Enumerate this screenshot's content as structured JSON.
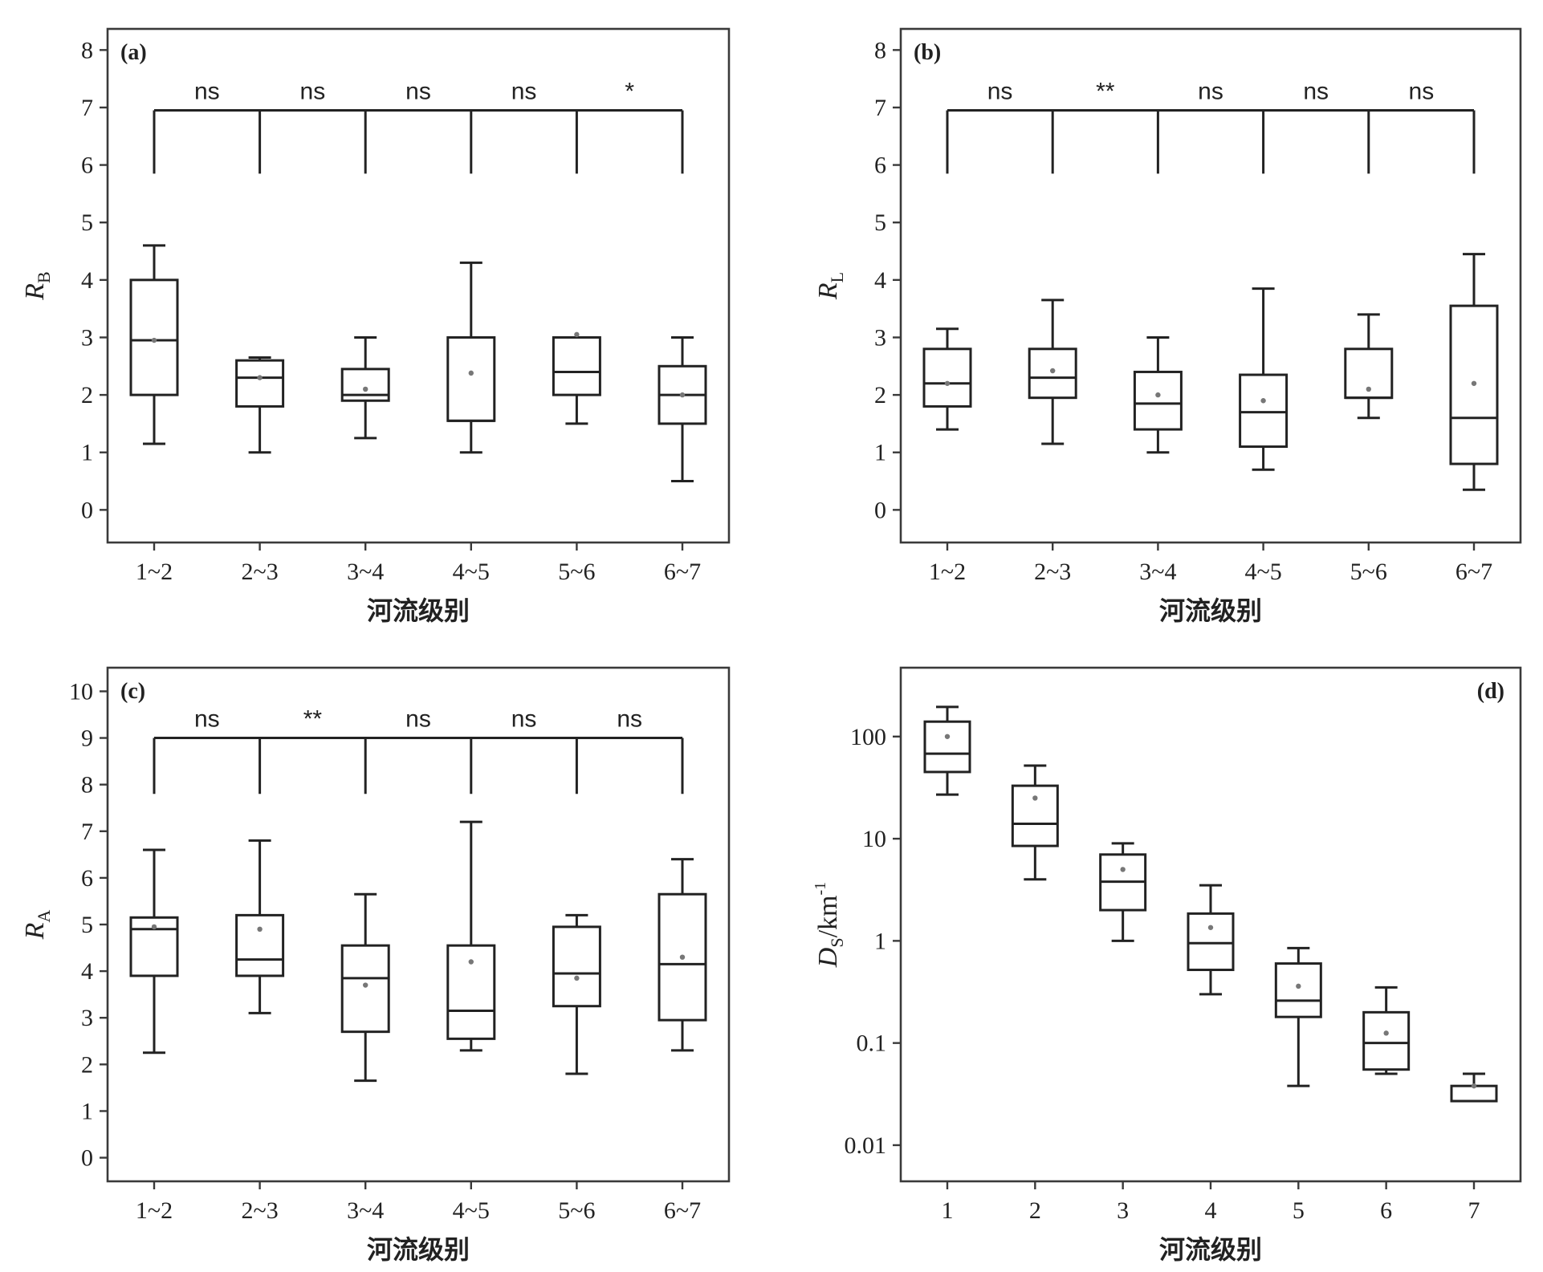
{
  "chart_data": [
    {
      "panel": "(a)",
      "type": "box",
      "xlabel": "河流级别",
      "ylabel_main": "R",
      "ylabel_sub": "B",
      "ylim": [
        -0.4,
        8.2
      ],
      "yticks": [
        0,
        1,
        2,
        3,
        4,
        5,
        6,
        7,
        8
      ],
      "categories": [
        "1~2",
        "2~3",
        "3~4",
        "4~5",
        "5~6",
        "6~7"
      ],
      "boxes": [
        {
          "min": 1.15,
          "q1": 2.0,
          "median": 2.95,
          "q3": 4.0,
          "max": 4.6,
          "mean": 2.95
        },
        {
          "min": 1.0,
          "q1": 1.8,
          "median": 2.3,
          "q3": 2.6,
          "max": 2.65,
          "mean": 2.3
        },
        {
          "min": 1.25,
          "q1": 1.9,
          "median": 2.0,
          "q3": 2.45,
          "max": 3.0,
          "mean": 2.1
        },
        {
          "min": 1.0,
          "q1": 1.55,
          "median": 1.55,
          "q3": 3.0,
          "max": 4.3,
          "mean": 2.38
        },
        {
          "min": 1.5,
          "q1": 2.0,
          "median": 2.4,
          "q3": 3.0,
          "max": 3.0,
          "mean": 3.05
        },
        {
          "min": 0.5,
          "q1": 1.5,
          "median": 2.0,
          "q3": 2.5,
          "max": 3.0,
          "mean": 2.0
        }
      ],
      "significance": [
        "ns",
        "ns",
        "ns",
        "ns",
        "*"
      ],
      "bracket_y": 6.95,
      "drop_y": 5.85
    },
    {
      "panel": "(b)",
      "type": "box",
      "xlabel": "河流级别",
      "ylabel_main": "R",
      "ylabel_sub": "L",
      "ylim": [
        -0.4,
        8.2
      ],
      "yticks": [
        0,
        1,
        2,
        3,
        4,
        5,
        6,
        7,
        8
      ],
      "categories": [
        "1~2",
        "2~3",
        "3~4",
        "4~5",
        "5~6",
        "6~7"
      ],
      "boxes": [
        {
          "min": 1.4,
          "q1": 1.8,
          "median": 2.2,
          "q3": 2.8,
          "max": 3.15,
          "mean": 2.2
        },
        {
          "min": 1.15,
          "q1": 1.95,
          "median": 2.3,
          "q3": 2.8,
          "max": 3.65,
          "mean": 2.42
        },
        {
          "min": 1.0,
          "q1": 1.4,
          "median": 1.85,
          "q3": 2.4,
          "max": 3.0,
          "mean": 2.0
        },
        {
          "min": 0.7,
          "q1": 1.1,
          "median": 1.7,
          "q3": 2.35,
          "max": 3.85,
          "mean": 1.9
        },
        {
          "min": 1.6,
          "q1": 1.95,
          "median": 1.95,
          "q3": 2.8,
          "max": 3.4,
          "mean": 2.1
        },
        {
          "min": 0.35,
          "q1": 0.8,
          "median": 1.6,
          "q3": 3.55,
          "max": 4.45,
          "mean": 2.2
        }
      ],
      "significance": [
        "ns",
        "**",
        "ns",
        "ns",
        "ns"
      ],
      "bracket_y": 6.95,
      "drop_y": 5.85
    },
    {
      "panel": "(c)",
      "type": "box",
      "xlabel": "河流级别",
      "ylabel_main": "R",
      "ylabel_sub": "A",
      "ylim": [
        -0.3,
        10.3
      ],
      "yticks": [
        0,
        1,
        2,
        3,
        4,
        5,
        6,
        7,
        8,
        9,
        10
      ],
      "categories": [
        "1~2",
        "2~3",
        "3~4",
        "4~5",
        "5~6",
        "6~7"
      ],
      "boxes": [
        {
          "min": 2.25,
          "q1": 3.9,
          "median": 4.9,
          "q3": 5.15,
          "max": 6.6,
          "mean": 4.95
        },
        {
          "min": 3.1,
          "q1": 3.9,
          "median": 4.25,
          "q3": 5.2,
          "max": 6.8,
          "mean": 4.9
        },
        {
          "min": 1.65,
          "q1": 2.7,
          "median": 3.85,
          "q3": 4.55,
          "max": 5.65,
          "mean": 3.7
        },
        {
          "min": 2.3,
          "q1": 2.55,
          "median": 3.15,
          "q3": 4.55,
          "max": 7.2,
          "mean": 4.2
        },
        {
          "min": 1.8,
          "q1": 3.25,
          "median": 3.95,
          "q3": 4.95,
          "max": 5.2,
          "mean": 3.85
        },
        {
          "min": 2.3,
          "q1": 2.95,
          "median": 4.15,
          "q3": 5.65,
          "max": 6.4,
          "mean": 4.3
        }
      ],
      "significance": [
        "ns",
        "**",
        "ns",
        "ns",
        "ns"
      ],
      "bracket_y": 9.0,
      "drop_y": 7.8
    },
    {
      "panel": "(d)",
      "type": "box",
      "scale": "log",
      "xlabel": "河流级别",
      "ylabel_main": "D",
      "ylabel_sub": "S",
      "ylabel_unit": "/km",
      "ylabel_sup": "-1",
      "ylim": [
        0.0055,
        380
      ],
      "yticks": [
        0.01,
        0.1,
        1,
        10,
        100
      ],
      "ytick_labels": [
        "0.01",
        "0.1",
        "1",
        "10",
        "100"
      ],
      "categories": [
        "1",
        "2",
        "3",
        "4",
        "5",
        "6",
        "7"
      ],
      "boxes": [
        {
          "min": 27,
          "q1": 45,
          "median": 68,
          "q3": 140,
          "max": 195,
          "mean": 100
        },
        {
          "min": 4.0,
          "q1": 8.5,
          "median": 14,
          "q3": 33,
          "max": 52,
          "mean": 25
        },
        {
          "min": 1.0,
          "q1": 2.0,
          "median": 3.8,
          "q3": 7.0,
          "max": 9.0,
          "mean": 5.0
        },
        {
          "min": 0.3,
          "q1": 0.52,
          "median": 0.95,
          "q3": 1.85,
          "max": 3.5,
          "mean": 1.35
        },
        {
          "min": 0.038,
          "q1": 0.18,
          "median": 0.26,
          "q3": 0.6,
          "max": 0.85,
          "mean": 0.36
        },
        {
          "min": 0.05,
          "q1": 0.055,
          "median": 0.1,
          "q3": 0.2,
          "max": 0.35,
          "mean": 0.125
        },
        {
          "min": 0.027,
          "q1": 0.027,
          "median": 0.027,
          "q3": 0.038,
          "max": 0.05,
          "mean": 0.038
        }
      ]
    }
  ]
}
